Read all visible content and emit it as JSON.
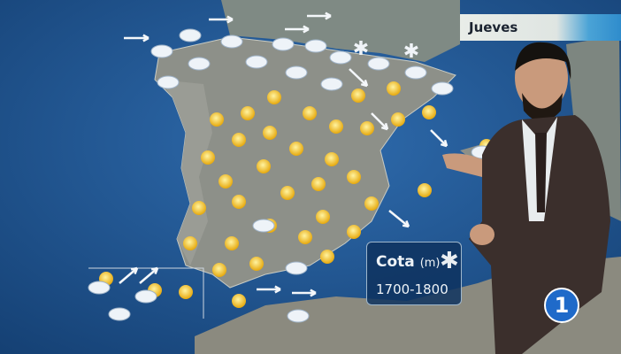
{
  "broadcast": {
    "day_label": "Jueves",
    "snow_level": {
      "title": "Cota",
      "unit": "(m)",
      "value": "1700-1800",
      "icon": "snowflake-icon"
    },
    "channel_logo": "1"
  },
  "colors": {
    "sea": "#1d4f86",
    "land": "#8a8e86",
    "sun": "#f2c21a",
    "cloud": "#eef3f8",
    "logo": "#1f6ac9"
  }
}
